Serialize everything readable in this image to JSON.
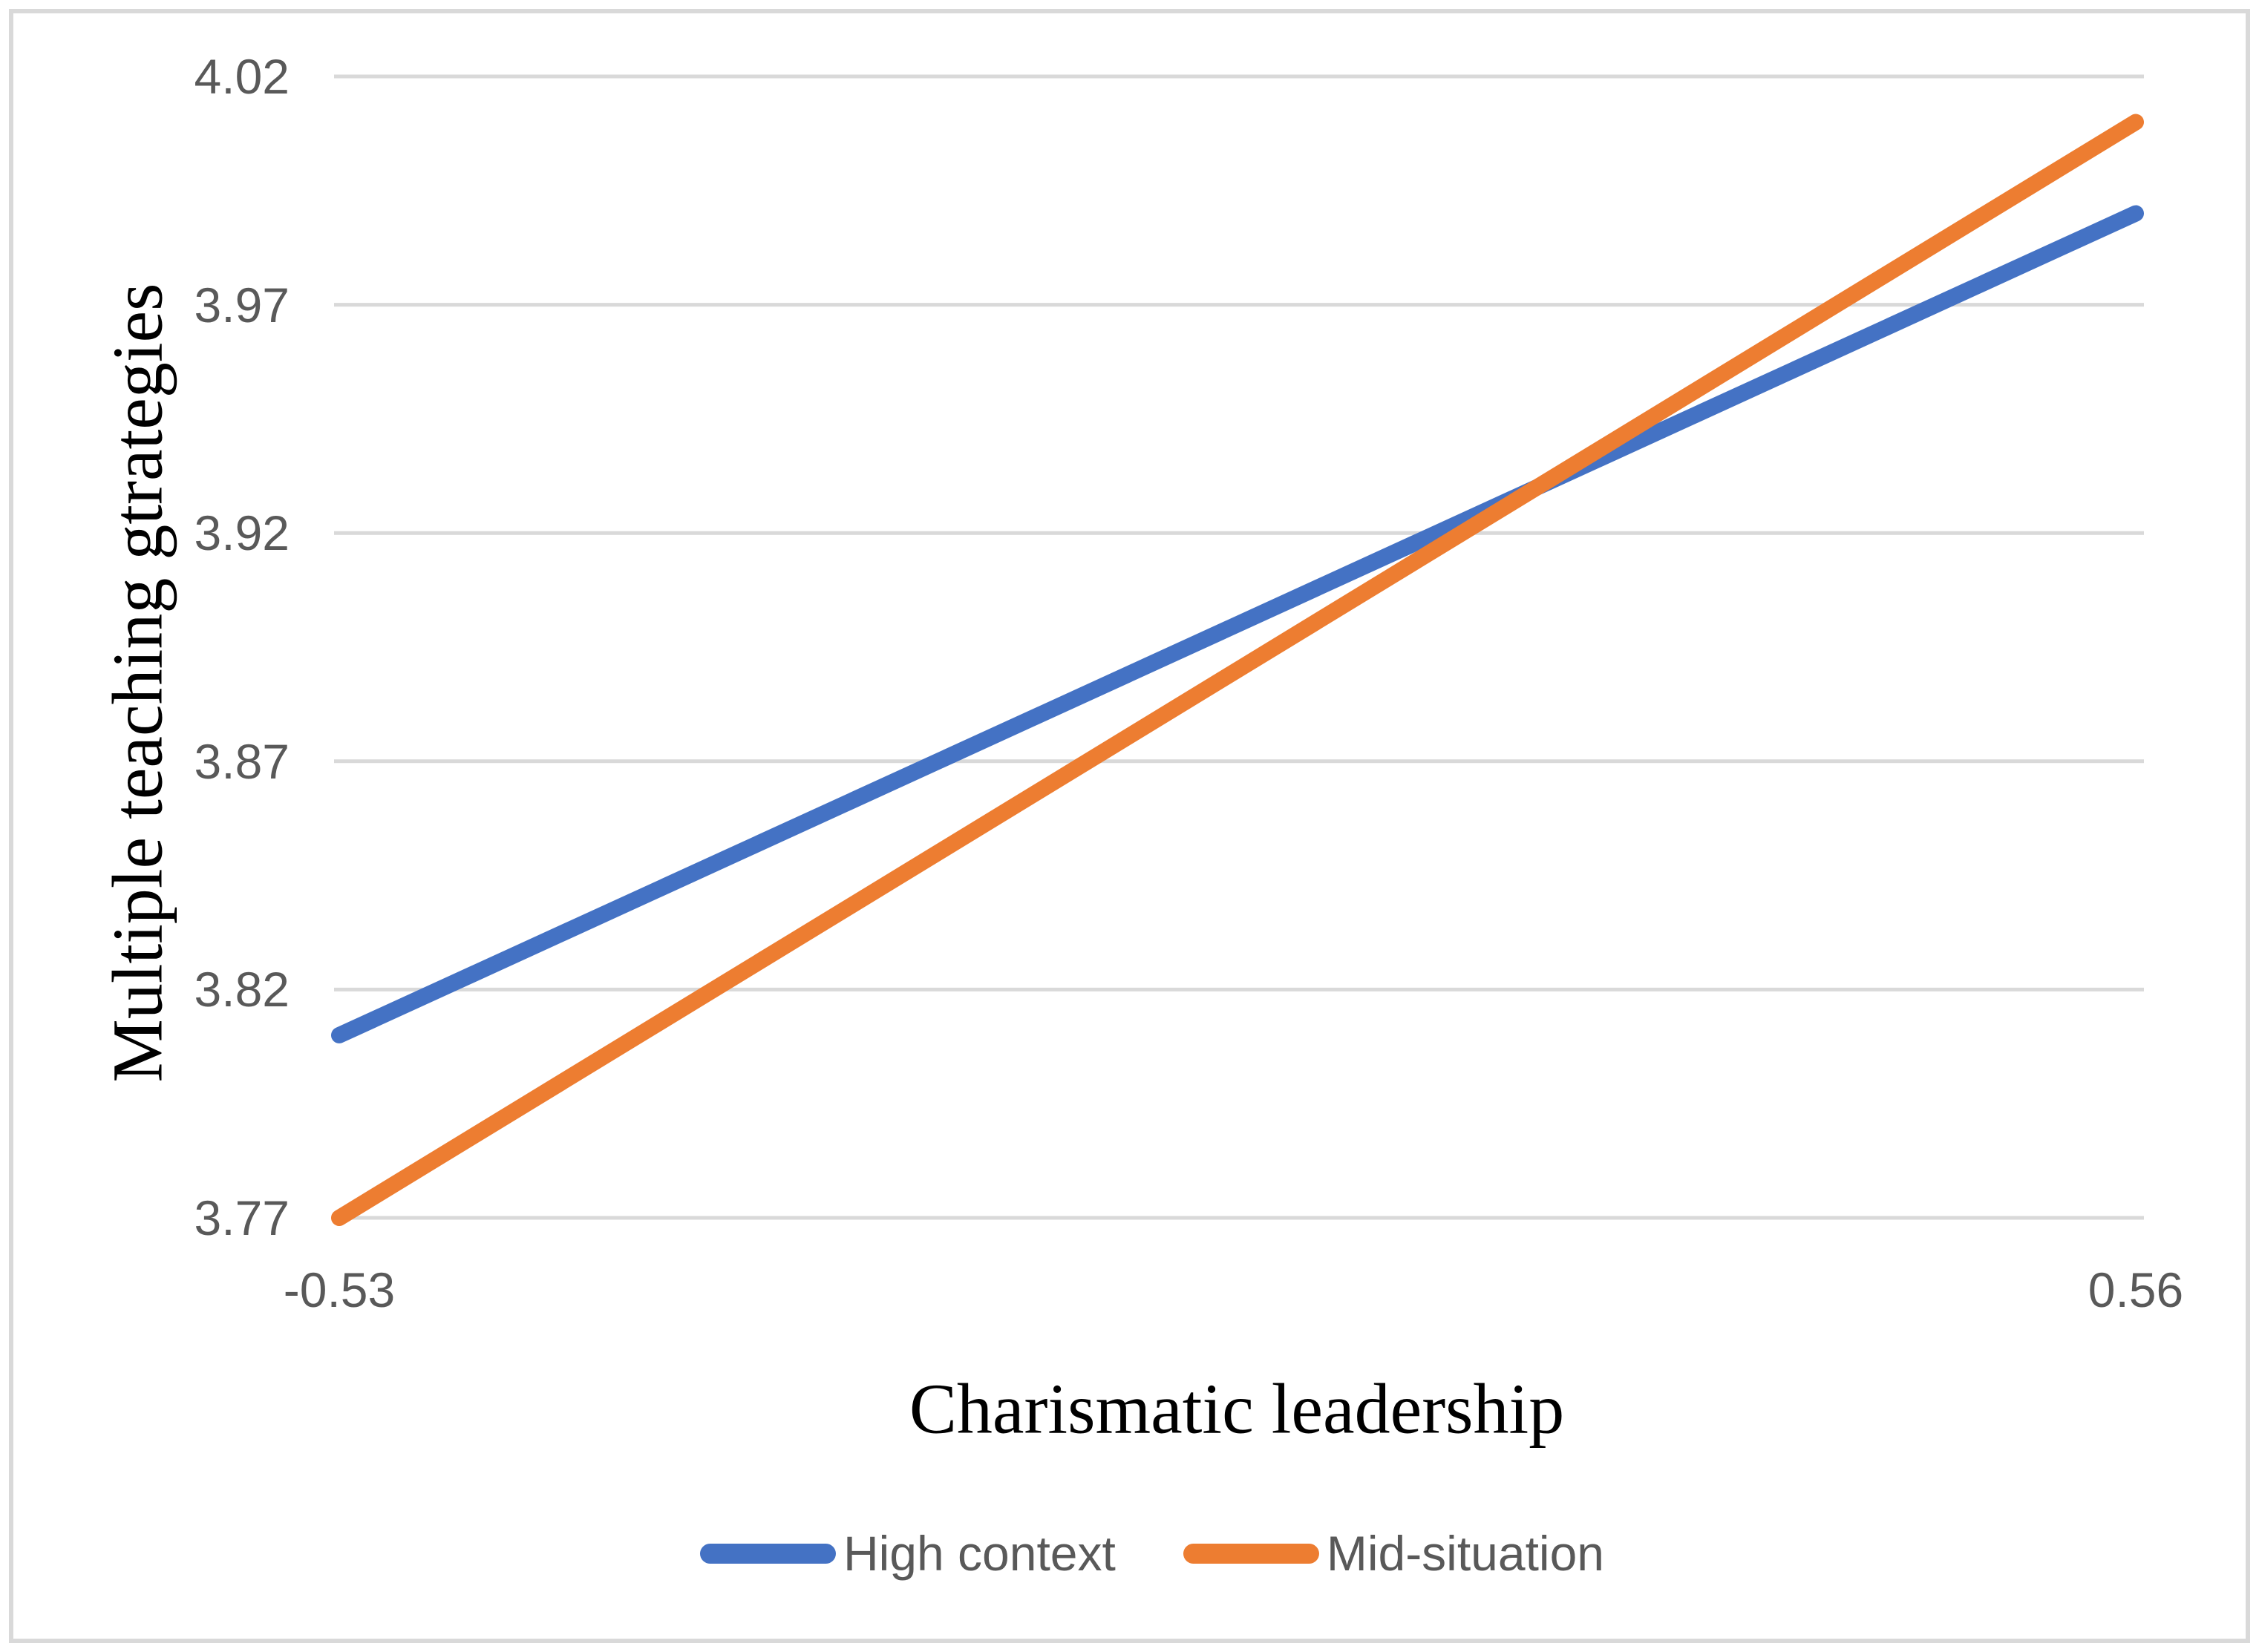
{
  "figure": {
    "background_color": "#FFFFFF",
    "border_color": "#D9D9D9"
  },
  "chart_data": {
    "type": "line",
    "x": [
      -0.53,
      0.56
    ],
    "x_tick_labels": [
      "-0.53",
      "0.56"
    ],
    "y_ticks": [
      4.02,
      3.97,
      3.92,
      3.87,
      3.82,
      3.77
    ],
    "y_tick_labels": [
      "4.02",
      "3.97",
      "3.92",
      "3.87",
      "3.82",
      "3.77"
    ],
    "ylim": [
      3.77,
      4.02
    ],
    "xlabel": "Charismatic leadership",
    "ylabel": "Multiple teaching gtrategies",
    "grid": true,
    "grid_color": "#D9D9D9",
    "tick_label_color": "#595959",
    "axis_title_color": "#000000",
    "legend_position": "bottom-center",
    "series": [
      {
        "name": "High context",
        "color": "#4472C4",
        "values": [
          3.81,
          3.99
        ]
      },
      {
        "name": "Mid-situation",
        "color": "#ED7D31",
        "values": [
          3.77,
          4.01
        ]
      }
    ]
  }
}
